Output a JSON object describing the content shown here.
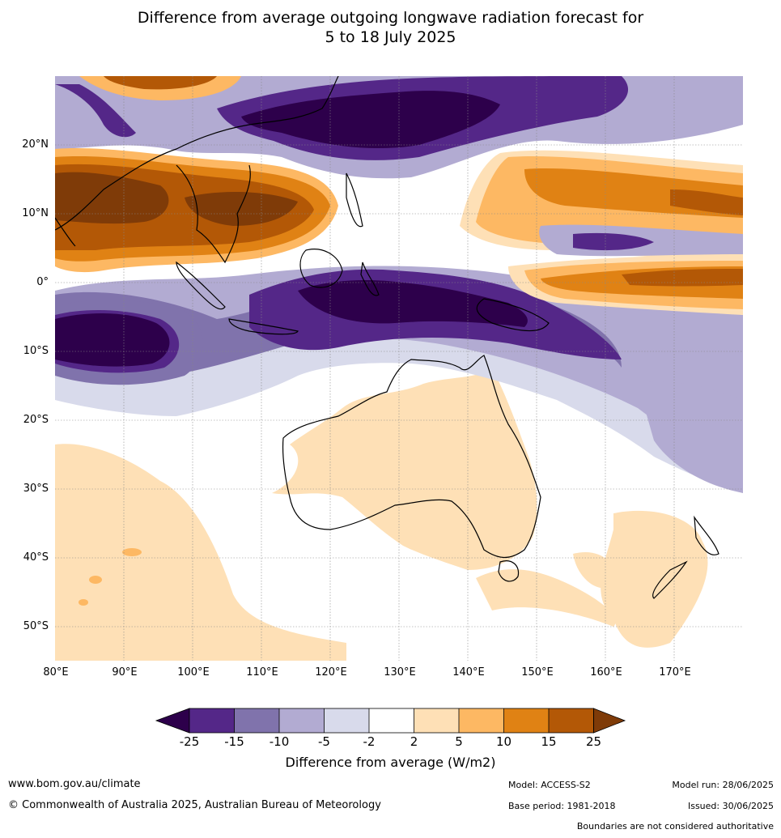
{
  "title_line1": "Difference from average outgoing longwave radiation forecast for",
  "title_line2": "5 to 18 July 2025",
  "lat_ticks": [
    "20°N",
    "10°N",
    "0°",
    "10°S",
    "20°S",
    "30°S",
    "40°S",
    "50°S"
  ],
  "lon_ticks": [
    "80°E",
    "90°E",
    "100°E",
    "110°E",
    "120°E",
    "130°E",
    "140°E",
    "150°E",
    "160°E",
    "170°E"
  ],
  "colorbar": {
    "labels": [
      "-25",
      "-15",
      "-10",
      "-5",
      "-2",
      "2",
      "5",
      "10",
      "15",
      "25"
    ],
    "colors": {
      "lt_-25": "#2d004b",
      "-25_-15": "#542788",
      "-15_-10": "#8073ac",
      "-10_-5": "#b2abd2",
      "-5_-2": "#d8daeb",
      "-2_2": "#ffffff",
      "2_5": "#fee0b6",
      "5_10": "#fdb863",
      "10_15": "#e08214",
      "15_25": "#b35806",
      "gt_25": "#7f3b08"
    },
    "title": "Difference from average (W/m2)"
  },
  "footer": {
    "website": "www.bom.gov.au/climate",
    "copyright": "© Commonwealth of Australia 2025, Australian Bureau of Meteorology",
    "model": "Model: ACCESS-S2",
    "base_period": "Base period: 1981-2018",
    "model_run": "Model run: 28/06/2025",
    "issued": "Issued: 30/06/2025",
    "boundaries_note": "Boundaries are not considered authoritative"
  }
}
